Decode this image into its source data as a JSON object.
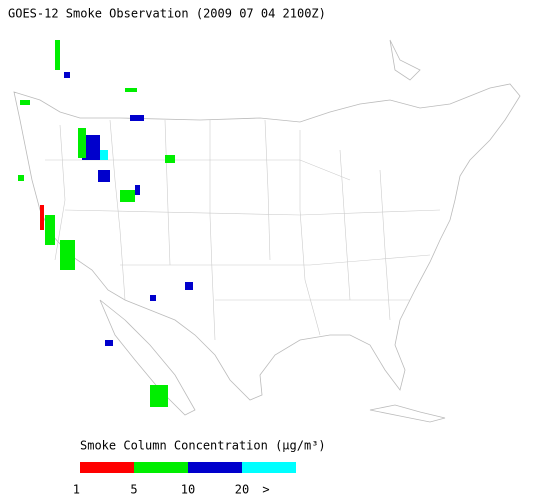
{
  "title": "GOES-12 Smoke Observation (2009 07 04  2100Z)",
  "legend": {
    "title": "Smoke Column Concentration (μg/m³)",
    "colors": [
      "#ff0000",
      "#00ee00",
      "#0000cc",
      "#00ffff"
    ],
    "labels": [
      "1",
      "5",
      "10",
      "20",
      ">"
    ]
  }
}
